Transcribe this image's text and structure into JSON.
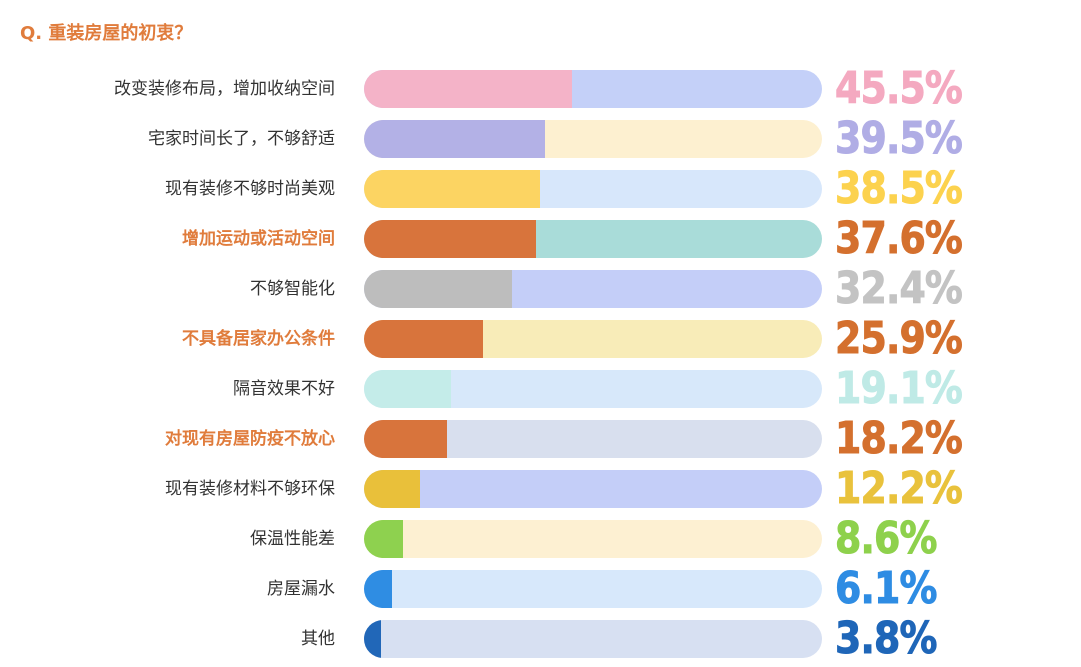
{
  "question": "Q. 重装房屋的初衷？",
  "chart_data": {
    "type": "bar",
    "orientation": "horizontal",
    "categories": [
      "改变装修布局，增加收纳空间",
      "宅家时间长了，不够舒适",
      "现有装修不够时尚美观",
      "增加运动或活动空间",
      "不够智能化",
      "不具备居家办公条件",
      "隔音效果不好",
      "对现有房屋防疫不放心",
      "现有装修材料不够环保",
      "保温性能差",
      "房屋漏水",
      "其他"
    ],
    "values": [
      45.5,
      39.5,
      38.5,
      37.6,
      32.4,
      25.9,
      19.1,
      18.2,
      12.2,
      8.6,
      6.1,
      3.8
    ],
    "value_labels": [
      "45.5%",
      "39.5%",
      "38.5%",
      "37.6%",
      "32.4%",
      "25.9%",
      "19.1%",
      "18.2%",
      "12.2%",
      "8.6%",
      "6.1%",
      "3.8%"
    ],
    "highlighted": [
      false,
      false,
      false,
      true,
      false,
      true,
      false,
      true,
      false,
      false,
      false,
      false
    ],
    "fill_colors": [
      "#f4b3c8",
      "#b3b1e6",
      "#fcd462",
      "#d8743c",
      "#bdbdbd",
      "#d8743c",
      "#c4ece9",
      "#d8743c",
      "#e9c03a",
      "#8ed14f",
      "#2f8de3",
      "#2167b8"
    ],
    "track_colors": [
      "#c4d0f8",
      "#fdf0d0",
      "#d7e7fb",
      "#a9dcd9",
      "#c4cef8",
      "#f8ecb8",
      "#d7e8fa",
      "#d8dfee",
      "#c4cef8",
      "#fdf0d2",
      "#d7e8fb",
      "#d7e0f2"
    ],
    "label_colors": [
      "#f4a9c0",
      "#b0ade5",
      "#fcd24e",
      "#d4702e",
      "#c3c3c3",
      "#d4702e",
      "#bfeae6",
      "#d4702e",
      "#e9c23c",
      "#8ed14c",
      "#2e8ce3",
      "#1f66b8"
    ],
    "xlim": [
      0,
      100
    ],
    "text_color": "#333333",
    "highlight_color": "#e07c3c"
  }
}
